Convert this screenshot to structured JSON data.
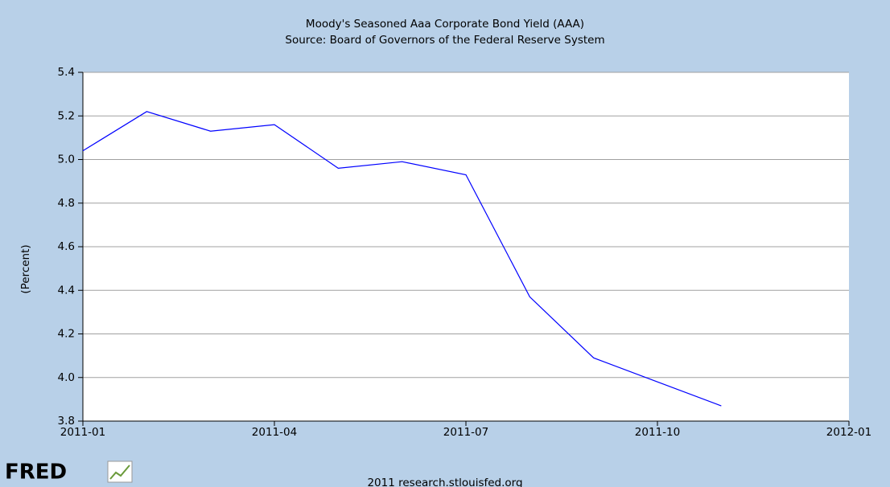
{
  "chart_data": {
    "type": "line",
    "title": "Moody's Seasoned Aaa Corporate Bond Yield (AAA)",
    "subtitle": "Source: Board of Governors of the Federal Reserve System",
    "y_label": "(Percent)",
    "x": [
      "2011-01",
      "2011-02",
      "2011-03",
      "2011-04",
      "2011-05",
      "2011-06",
      "2011-07",
      "2011-08",
      "2011-09",
      "2011-10",
      "2011-11"
    ],
    "series": [
      {
        "name": "AAA",
        "color": "#0000ff",
        "values": [
          5.04,
          5.22,
          5.13,
          5.16,
          4.96,
          4.99,
          4.93,
          4.37,
          4.09,
          3.98,
          3.87
        ]
      }
    ],
    "xlim": [
      "2011-01",
      "2012-01"
    ],
    "xticks": [
      "2011-01",
      "2011-04",
      "2011-07",
      "2011-10",
      "2012-01"
    ],
    "ylim": [
      3.8,
      5.4
    ],
    "yticks": [
      {
        "value": 3.8,
        "label": "3.8"
      },
      {
        "value": 4.0,
        "label": "4.0"
      },
      {
        "value": 4.2,
        "label": "4.2"
      },
      {
        "value": 4.4,
        "label": "4.4"
      },
      {
        "value": 4.6,
        "label": "4.6"
      },
      {
        "value": 4.8,
        "label": "4.8"
      },
      {
        "value": 5.0,
        "label": "5.0"
      },
      {
        "value": 5.2,
        "label": "5.2"
      },
      {
        "value": 5.4,
        "label": "5.4"
      }
    ],
    "grid": true
  },
  "footer": {
    "logo": "FRED",
    "credit": "2011 research.stlouisfed.org"
  }
}
